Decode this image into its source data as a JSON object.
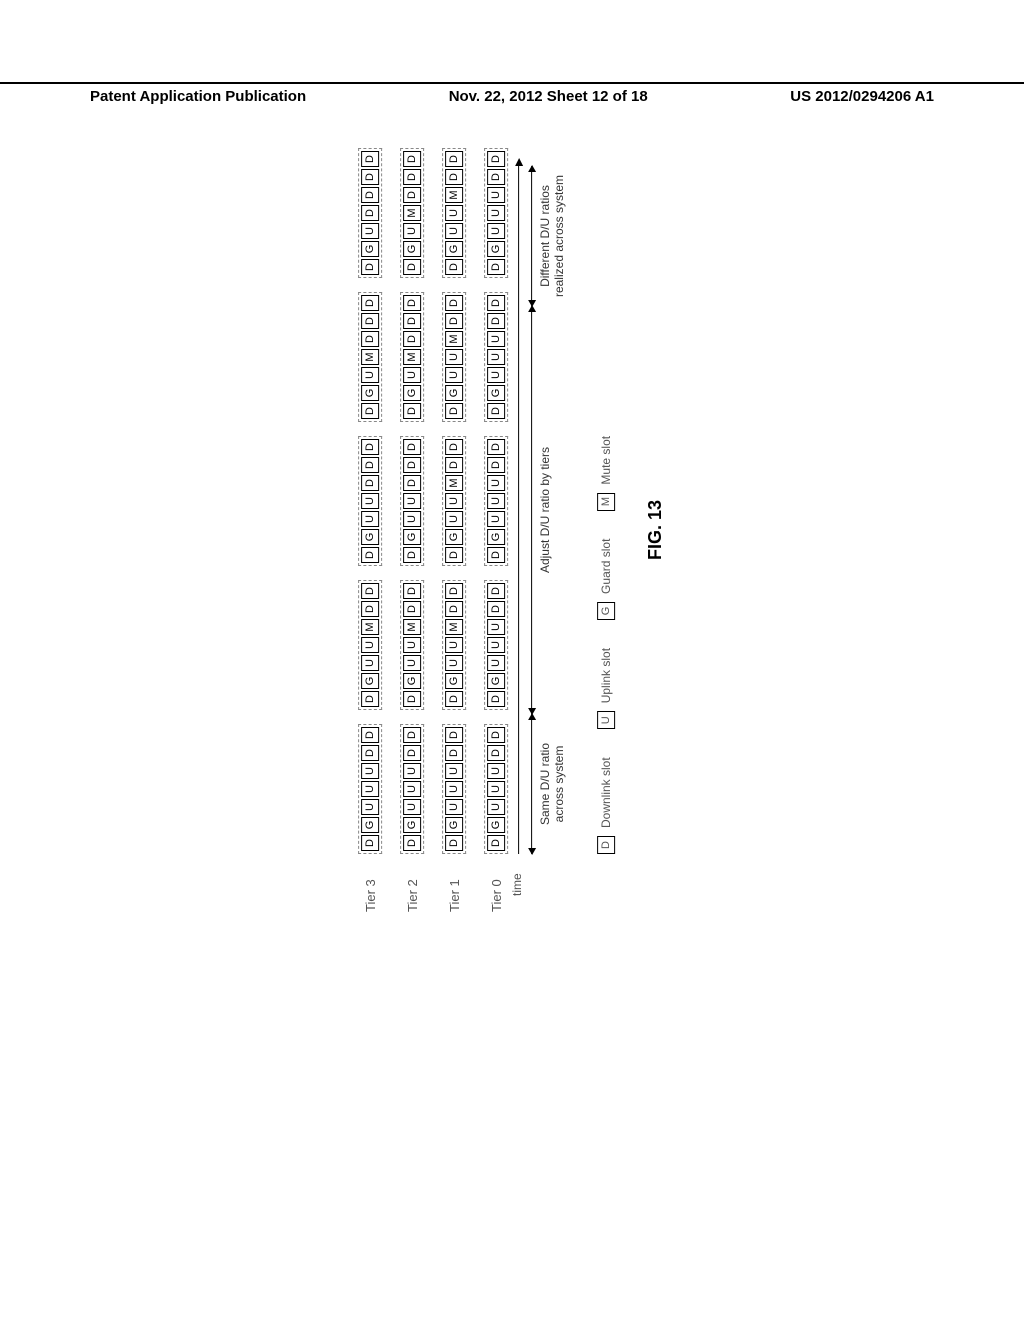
{
  "header": {
    "left": "Patent Application Publication",
    "center": "Nov. 22, 2012  Sheet 12 of 18",
    "right": "US 2012/0294206 A1"
  },
  "tiers": [
    {
      "label": "Tier 3",
      "frames": [
        {
          "slots": [
            "D",
            "G",
            "U",
            "U",
            "U",
            "D",
            "D"
          ]
        },
        {
          "slots": [
            "D",
            "G",
            "U",
            "U",
            "M",
            "D",
            "D"
          ]
        },
        {
          "slots": [
            "D",
            "G",
            "U",
            "U",
            "D",
            "D",
            "D"
          ]
        },
        {
          "slots": [
            "D",
            "G",
            "U",
            "M",
            "D",
            "D",
            "D"
          ]
        },
        {
          "slots": [
            "D",
            "G",
            "U",
            "D",
            "D",
            "D",
            "D"
          ]
        }
      ]
    },
    {
      "label": "Tier 2",
      "frames": [
        {
          "slots": [
            "D",
            "G",
            "U",
            "U",
            "U",
            "D",
            "D"
          ]
        },
        {
          "slots": [
            "D",
            "G",
            "U",
            "U",
            "M",
            "D",
            "D"
          ]
        },
        {
          "slots": [
            "D",
            "G",
            "U",
            "U",
            "D",
            "D",
            "D"
          ]
        },
        {
          "slots": [
            "D",
            "G",
            "U",
            "M",
            "D",
            "D",
            "D"
          ]
        },
        {
          "slots": [
            "D",
            "G",
            "U",
            "M",
            "D",
            "D",
            "D"
          ]
        }
      ]
    },
    {
      "label": "Tier 1",
      "frames": [
        {
          "slots": [
            "D",
            "G",
            "U",
            "U",
            "U",
            "D",
            "D"
          ]
        },
        {
          "slots": [
            "D",
            "G",
            "U",
            "U",
            "M",
            "D",
            "D"
          ]
        },
        {
          "slots": [
            "D",
            "G",
            "U",
            "U",
            "M",
            "D",
            "D"
          ]
        },
        {
          "slots": [
            "D",
            "G",
            "U",
            "U",
            "M",
            "D",
            "D"
          ]
        },
        {
          "slots": [
            "D",
            "G",
            "U",
            "U",
            "M",
            "D",
            "D"
          ]
        }
      ]
    },
    {
      "label": "Tier 0",
      "frames": [
        {
          "slots": [
            "D",
            "G",
            "U",
            "U",
            "U",
            "D",
            "D"
          ]
        },
        {
          "slots": [
            "D",
            "G",
            "U",
            "U",
            "U",
            "D",
            "D"
          ]
        },
        {
          "slots": [
            "D",
            "G",
            "U",
            "U",
            "U",
            "D",
            "D"
          ]
        },
        {
          "slots": [
            "D",
            "G",
            "U",
            "U",
            "U",
            "D",
            "D"
          ]
        },
        {
          "slots": [
            "D",
            "G",
            "U",
            "U",
            "U",
            "D",
            "D"
          ]
        }
      ]
    }
  ],
  "timeAxis": {
    "label": "time"
  },
  "sections": [
    {
      "widthPx": 140,
      "line1": "Same D/U ratio",
      "line2": "across system"
    },
    {
      "widthPx": 408,
      "line1": "Adjust D/U ratio by tiers",
      "line2": ""
    },
    {
      "widthPx": 140,
      "line1": "Different D/U ratios",
      "line2": "realized across system"
    }
  ],
  "legend": [
    {
      "code": "D",
      "label": "Downlink slot"
    },
    {
      "code": "U",
      "label": "Uplink slot"
    },
    {
      "code": "G",
      "label": "Guard slot"
    },
    {
      "code": "M",
      "label": "Mute slot"
    }
  ],
  "figCaption": "FIG. 13",
  "style": {
    "slotBorder": "#000000",
    "dashBorder": "#888888",
    "textColor": "#555555",
    "slotWidthPx": 16,
    "slotHeightPx": 18
  }
}
